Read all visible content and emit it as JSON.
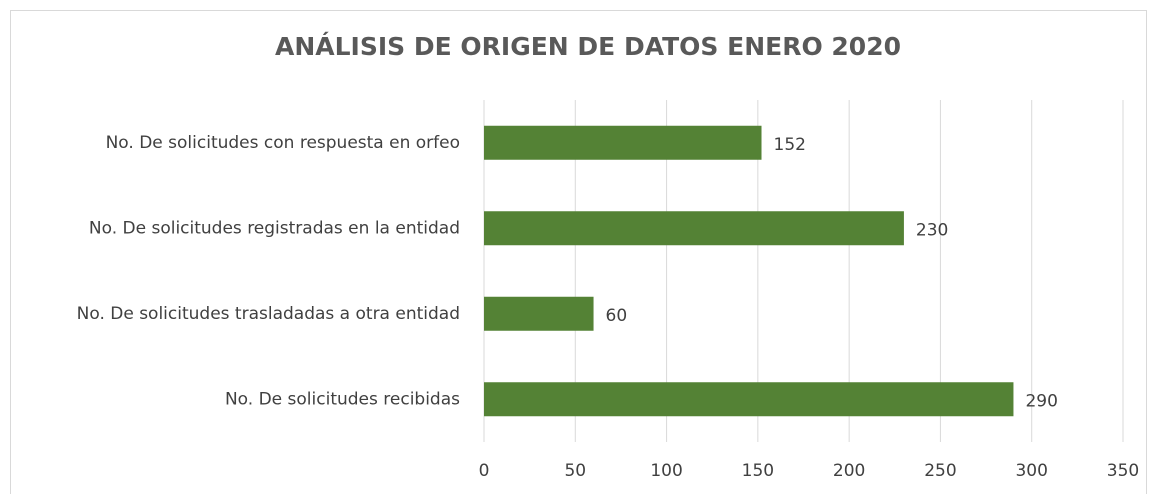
{
  "chart_data": {
    "type": "bar",
    "orientation": "horizontal",
    "title": "ANÁLISIS DE ORIGEN DE DATOS ENERO 2020",
    "categories": [
      "No. De solicitudes con respuesta en orfeo",
      "No. De solicitudes registradas en la entidad",
      "No. De solicitudes trasladadas a otra entidad",
      "No. De solicitudes recibidas"
    ],
    "values": [
      152,
      230,
      60,
      290
    ],
    "color": "#548235",
    "xlim": [
      0,
      350
    ],
    "xticks": [
      0,
      50,
      100,
      150,
      200,
      250,
      300,
      350
    ],
    "grid": true
  }
}
